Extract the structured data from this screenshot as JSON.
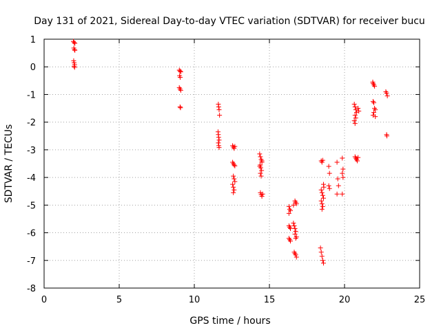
{
  "chart_data": {
    "type": "scatter",
    "title": "Day 131 of 2021, Sidereal Day-to-day VTEC variation (SDTVAR) for receiver bucu",
    "xlabel": "GPS time / hours",
    "ylabel": "SDTVAR / TECUs",
    "xlim": [
      0,
      25
    ],
    "ylim": [
      -8,
      1
    ],
    "xticks": [
      0,
      5,
      10,
      15,
      20,
      25
    ],
    "yticks": [
      -8,
      -7,
      -6,
      -5,
      -4,
      -3,
      -2,
      -1,
      0,
      1
    ],
    "grid": true,
    "marker": "+",
    "color": "#ff0000",
    "series": [
      {
        "name": "SDTVAR",
        "points": [
          [
            1.95,
            0.92
          ],
          [
            2.0,
            0.88
          ],
          [
            2.05,
            0.85
          ],
          [
            1.98,
            0.68
          ],
          [
            2.02,
            0.62
          ],
          [
            2.05,
            0.6
          ],
          [
            1.97,
            0.22
          ],
          [
            2.0,
            0.15
          ],
          [
            2.03,
            0.08
          ],
          [
            2.0,
            0.02
          ],
          [
            2.03,
            -0.02
          ],
          [
            9.0,
            -0.12
          ],
          [
            9.05,
            -0.15
          ],
          [
            9.1,
            -0.18
          ],
          [
            9.02,
            -0.32
          ],
          [
            9.06,
            -0.38
          ],
          [
            9.0,
            -0.75
          ],
          [
            9.05,
            -0.8
          ],
          [
            9.1,
            -0.85
          ],
          [
            9.05,
            -1.45
          ],
          [
            9.08,
            -1.48
          ],
          [
            11.6,
            -1.35
          ],
          [
            11.62,
            -1.45
          ],
          [
            11.65,
            -1.55
          ],
          [
            11.68,
            -1.75
          ],
          [
            11.58,
            -2.35
          ],
          [
            11.6,
            -2.45
          ],
          [
            11.62,
            -2.55
          ],
          [
            11.65,
            -2.65
          ],
          [
            11.6,
            -2.75
          ],
          [
            11.63,
            -2.85
          ],
          [
            11.65,
            -2.92
          ],
          [
            12.55,
            -2.85
          ],
          [
            12.6,
            -2.9
          ],
          [
            12.65,
            -2.95
          ],
          [
            12.7,
            -2.88
          ],
          [
            12.55,
            -3.45
          ],
          [
            12.6,
            -3.5
          ],
          [
            12.65,
            -3.55
          ],
          [
            12.7,
            -3.58
          ],
          [
            12.6,
            -3.95
          ],
          [
            12.65,
            -4.05
          ],
          [
            12.7,
            -4.15
          ],
          [
            12.55,
            -4.25
          ],
          [
            12.6,
            -4.35
          ],
          [
            12.65,
            -4.45
          ],
          [
            12.6,
            -4.55
          ],
          [
            14.35,
            -3.15
          ],
          [
            14.4,
            -3.25
          ],
          [
            14.45,
            -3.35
          ],
          [
            14.5,
            -3.45
          ],
          [
            14.38,
            -3.55
          ],
          [
            14.42,
            -3.65
          ],
          [
            14.48,
            -3.75
          ],
          [
            14.4,
            -3.85
          ],
          [
            14.45,
            -3.95
          ],
          [
            14.5,
            -3.4
          ],
          [
            14.36,
            -3.6
          ],
          [
            14.4,
            -4.55
          ],
          [
            14.45,
            -4.62
          ],
          [
            14.5,
            -4.68
          ],
          [
            14.55,
            -4.6
          ],
          [
            16.3,
            -5.05
          ],
          [
            16.35,
            -5.15
          ],
          [
            16.4,
            -5.2
          ],
          [
            16.3,
            -5.3
          ],
          [
            16.3,
            -5.75
          ],
          [
            16.35,
            -5.8
          ],
          [
            16.4,
            -5.85
          ],
          [
            16.3,
            -6.2
          ],
          [
            16.35,
            -6.25
          ],
          [
            16.4,
            -6.3
          ],
          [
            16.6,
            -5.65
          ],
          [
            16.65,
            -5.75
          ],
          [
            16.7,
            -5.85
          ],
          [
            16.75,
            -5.95
          ],
          [
            16.7,
            -6.05
          ],
          [
            16.8,
            -6.15
          ],
          [
            16.75,
            -6.2
          ],
          [
            16.65,
            -6.7
          ],
          [
            16.7,
            -6.75
          ],
          [
            16.75,
            -6.8
          ],
          [
            16.8,
            -6.88
          ],
          [
            16.7,
            -4.85
          ],
          [
            16.75,
            -4.9
          ],
          [
            16.8,
            -4.95
          ],
          [
            16.6,
            -5.0
          ],
          [
            18.45,
            -3.4
          ],
          [
            18.5,
            -3.45
          ],
          [
            18.55,
            -3.38
          ],
          [
            18.45,
            -4.45
          ],
          [
            18.5,
            -4.55
          ],
          [
            18.55,
            -4.65
          ],
          [
            18.6,
            -4.75
          ],
          [
            18.45,
            -4.85
          ],
          [
            18.5,
            -4.95
          ],
          [
            18.55,
            -5.05
          ],
          [
            18.5,
            -5.15
          ],
          [
            18.6,
            -4.25
          ],
          [
            18.62,
            -4.35
          ],
          [
            18.4,
            -6.55
          ],
          [
            18.45,
            -6.7
          ],
          [
            18.5,
            -6.85
          ],
          [
            18.55,
            -7.0
          ],
          [
            18.6,
            -7.1
          ],
          [
            18.95,
            -3.6
          ],
          [
            19.0,
            -3.85
          ],
          [
            18.95,
            -4.3
          ],
          [
            19.0,
            -4.4
          ],
          [
            19.5,
            -3.45
          ],
          [
            19.55,
            -4.05
          ],
          [
            19.6,
            -4.3
          ],
          [
            19.5,
            -4.6
          ],
          [
            19.85,
            -3.3
          ],
          [
            19.9,
            -3.7
          ],
          [
            19.85,
            -3.85
          ],
          [
            19.9,
            -4.0
          ],
          [
            19.85,
            -4.6
          ],
          [
            20.65,
            -1.35
          ],
          [
            20.7,
            -1.45
          ],
          [
            20.75,
            -1.55
          ],
          [
            20.8,
            -1.65
          ],
          [
            20.7,
            -1.75
          ],
          [
            20.75,
            -1.85
          ],
          [
            20.65,
            -1.95
          ],
          [
            20.7,
            -2.05
          ],
          [
            20.9,
            -1.5
          ],
          [
            20.95,
            -1.6
          ],
          [
            20.7,
            -3.25
          ],
          [
            20.75,
            -3.3
          ],
          [
            20.8,
            -3.35
          ],
          [
            20.85,
            -3.4
          ],
          [
            20.9,
            -3.28
          ],
          [
            21.9,
            -0.6
          ],
          [
            21.95,
            -0.65
          ],
          [
            22.0,
            -0.7
          ],
          [
            21.88,
            -0.55
          ],
          [
            21.9,
            -1.25
          ],
          [
            21.95,
            -1.3
          ],
          [
            22.0,
            -1.5
          ],
          [
            22.05,
            -1.55
          ],
          [
            21.95,
            -1.65
          ],
          [
            21.9,
            -1.75
          ],
          [
            22.05,
            -1.8
          ],
          [
            22.75,
            -0.9
          ],
          [
            22.8,
            -0.95
          ],
          [
            22.85,
            -1.05
          ],
          [
            22.8,
            -2.45
          ],
          [
            22.82,
            -2.5
          ]
        ]
      }
    ]
  }
}
